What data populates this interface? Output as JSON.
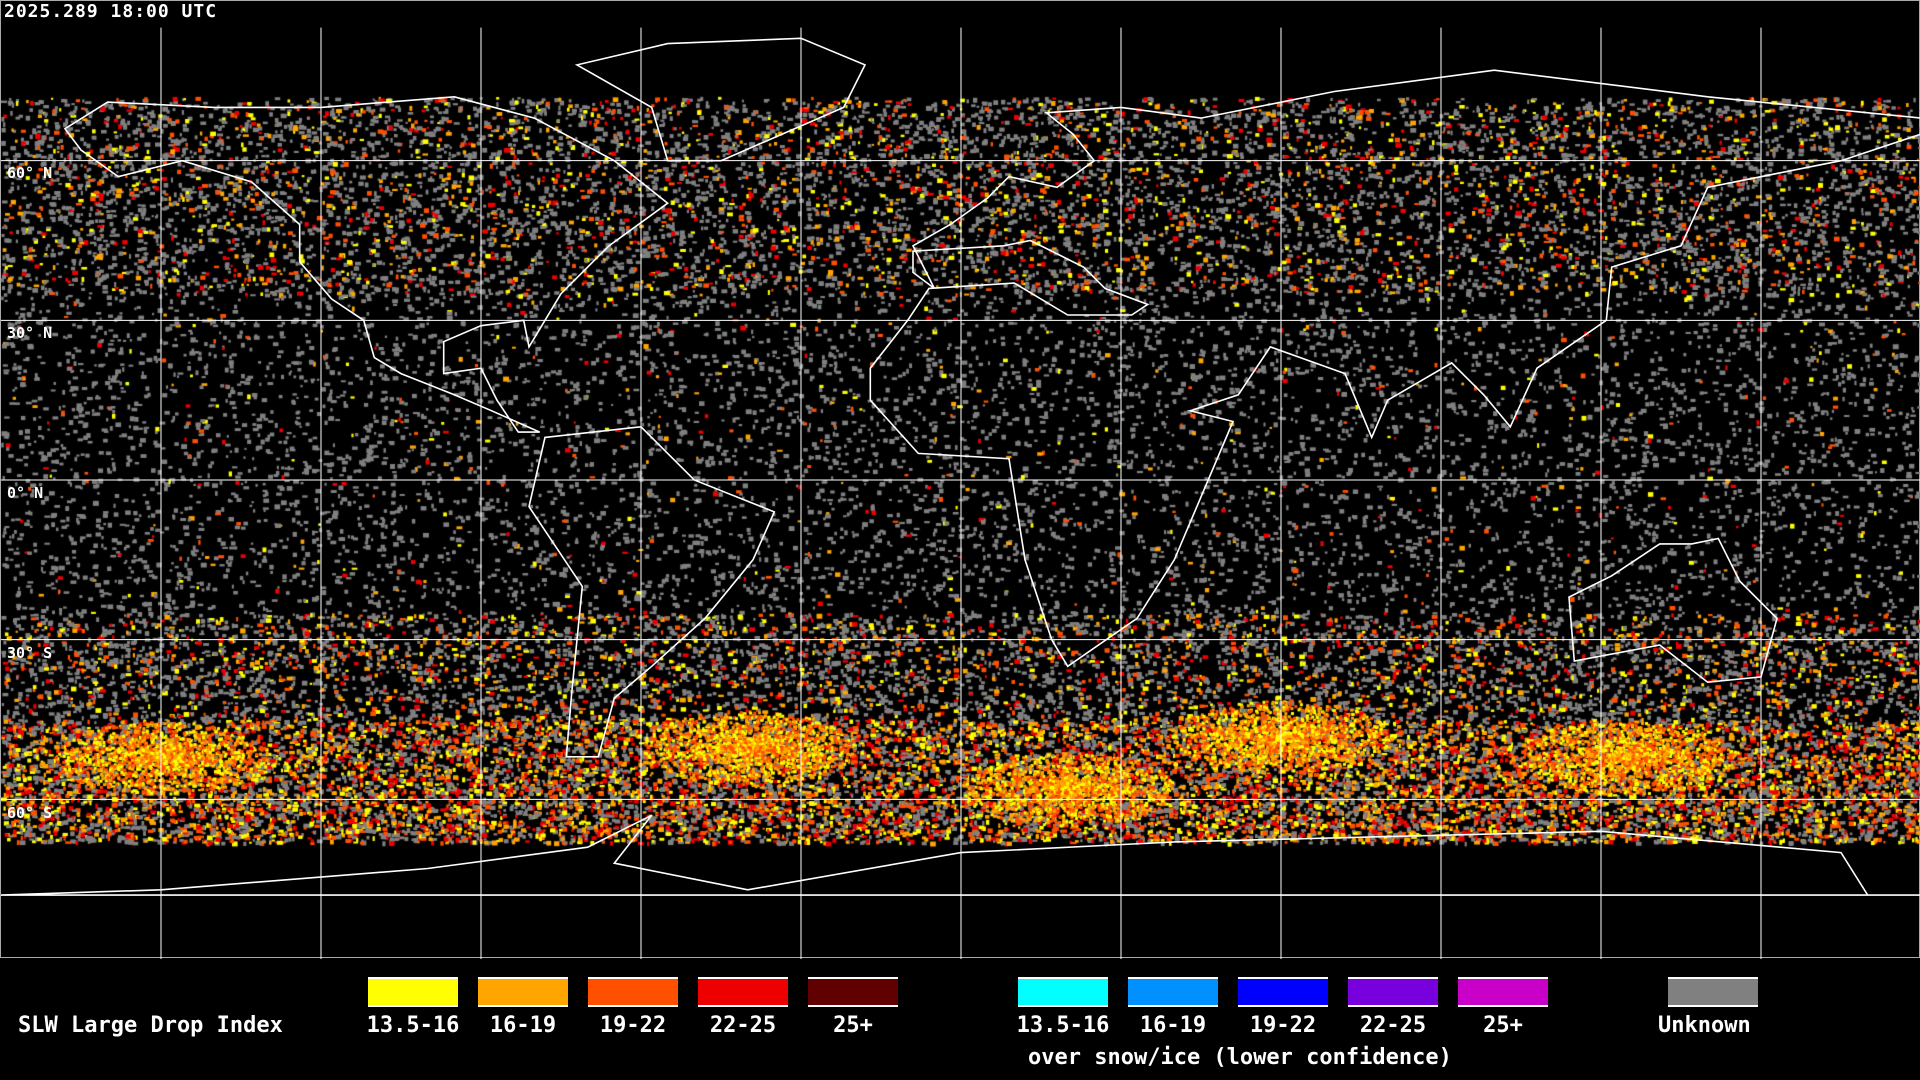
{
  "timestamp": "2025.289 18:00 UTC",
  "map": {
    "projection": "equirectangular",
    "lat_labels": [
      "60° N",
      "30° N",
      "0° N",
      "30° S",
      "60° S"
    ],
    "grid_spacing_degrees": 30
  },
  "legend": {
    "title": "SLW Large Drop Index",
    "main": [
      {
        "label": "13.5-16",
        "color": "#ffff00"
      },
      {
        "label": "16-19",
        "color": "#ffa500"
      },
      {
        "label": "19-22",
        "color": "#ff5000"
      },
      {
        "label": "22-25",
        "color": "#ee0000"
      },
      {
        "label": "25+",
        "color": "#600000"
      }
    ],
    "snow": [
      {
        "label": "13.5-16",
        "color": "#00ffff"
      },
      {
        "label": "16-19",
        "color": "#0090ff"
      },
      {
        "label": "19-22",
        "color": "#0000ff"
      },
      {
        "label": "22-25",
        "color": "#7800dd"
      },
      {
        "label": "25+",
        "color": "#c800c8"
      }
    ],
    "snow_caption": "over snow/ice (lower confidence)",
    "unknown": {
      "label": "Unknown",
      "color": "#808080"
    }
  }
}
